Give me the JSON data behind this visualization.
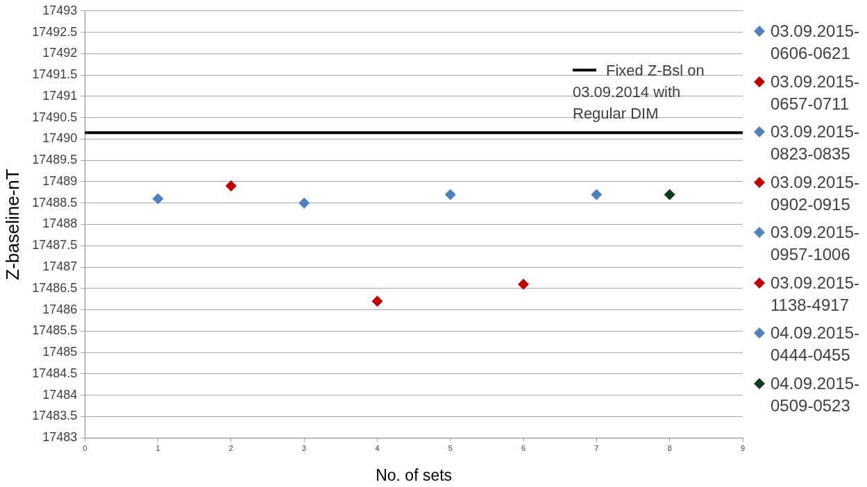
{
  "chart_data": {
    "type": "scatter",
    "xlabel": "No. of sets",
    "ylabel": "Z-baseline-nT",
    "series": [
      {
        "name": "03.09.2015-0606-0621",
        "color": "#4f81bd",
        "x": [
          1
        ],
        "values": [
          17488.6
        ]
      },
      {
        "name": "03.09.2015-0657-0711",
        "color": "#c00000",
        "x": [
          2
        ],
        "values": [
          17488.9
        ]
      },
      {
        "name": "03.09.2015-0823-0835",
        "color": "#4f81bd",
        "x": [
          3
        ],
        "values": [
          17488.5
        ]
      },
      {
        "name": "03.09.2015-0902-0915",
        "color": "#c00000",
        "x": [
          4
        ],
        "values": [
          17486.2
        ]
      },
      {
        "name": "03.09.2015-0957-1006",
        "color": "#4f81bd",
        "x": [
          5
        ],
        "values": [
          17488.7
        ]
      },
      {
        "name": "03.09.2015-1138-4917",
        "color": "#c00000",
        "x": [
          6
        ],
        "values": [
          17486.6
        ]
      },
      {
        "name": "04.09.2015-0444-0455",
        "color": "#4f81bd",
        "x": [
          7
        ],
        "values": [
          17488.7
        ]
      },
      {
        "name": "04.09.2015-0509-0523",
        "color": "#0d3d1d",
        "x": [
          8
        ],
        "values": [
          17488.7
        ]
      }
    ],
    "xlim": [
      0,
      9
    ],
    "xticks": [
      0,
      1,
      2,
      3,
      4,
      5,
      6,
      7,
      8,
      9
    ],
    "ylim": [
      17483,
      17493
    ],
    "yticks": [
      17483,
      17483.5,
      17484,
      17484.5,
      17485,
      17485.5,
      17486,
      17486.5,
      17487,
      17487.5,
      17488,
      17488.5,
      17489,
      17489.5,
      17490,
      17490.5,
      17491,
      17491.5,
      17492,
      17492.5,
      17493
    ],
    "grid": "y",
    "legend": "right",
    "marker": "diamond",
    "ref_lines": [
      {
        "axis": "y",
        "value": 17490.15,
        "label": "Fixed Z-Bsl on 03.09.2014 with Regular DIM",
        "color": "#000000"
      }
    ]
  }
}
